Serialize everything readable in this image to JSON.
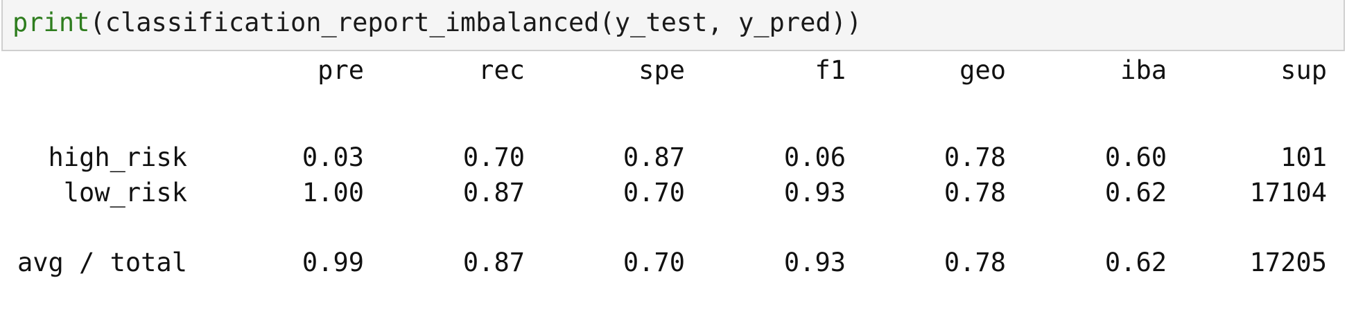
{
  "input_cell": {
    "function_name": "print",
    "code_rest": "(classification_report_imbalanced(y_test, y_pred))"
  },
  "report": {
    "columns": [
      "pre",
      "rec",
      "spe",
      "f1",
      "geo",
      "iba",
      "sup"
    ],
    "rows": [
      {
        "label": "high_risk",
        "values": [
          "0.03",
          "0.70",
          "0.87",
          "0.06",
          "0.78",
          "0.60",
          "101"
        ]
      },
      {
        "label": "low_risk",
        "values": [
          "1.00",
          "0.87",
          "0.70",
          "0.93",
          "0.78",
          "0.62",
          "17104"
        ]
      },
      {
        "label": "avg / total",
        "values": [
          "0.99",
          "0.87",
          "0.70",
          "0.93",
          "0.78",
          "0.62",
          "17205"
        ]
      }
    ]
  }
}
